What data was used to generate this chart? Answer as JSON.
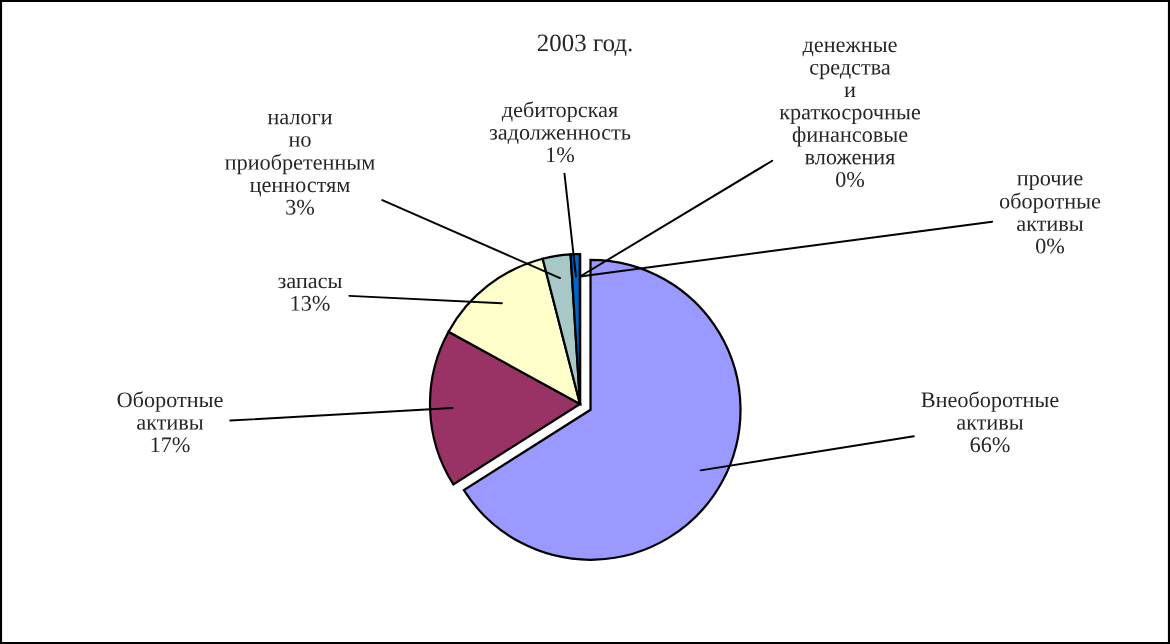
{
  "chart_data": {
    "type": "pie",
    "title": "2003 год.",
    "categories": [
      "Внеоборотные активы",
      "Оборотные активы",
      "запасы",
      "налоги но приобретенным ценностям",
      "дебиторская задолженность",
      "денежные средства и краткосрочные финансовые вложения",
      "прочие оборотные активы"
    ],
    "values": [
      66,
      17,
      13,
      3,
      1,
      0,
      0
    ],
    "colors": [
      "#9999ff",
      "#993366",
      "#ffffcc",
      "#a8c8c8",
      "#0066cc",
      "#000080",
      "#ff8080"
    ],
    "value_labels": [
      "66%",
      "17%",
      "13%",
      "3%",
      "1%",
      "0%",
      "0%"
    ]
  }
}
